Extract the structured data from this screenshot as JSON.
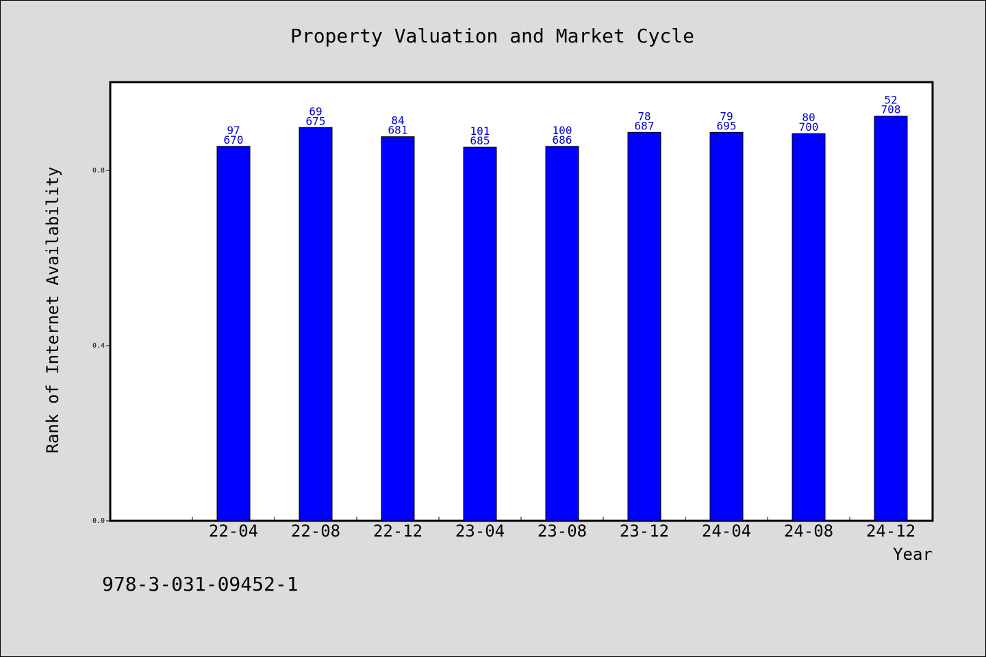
{
  "chart_data": {
    "type": "bar",
    "title": "Property Valuation and Market Cycle",
    "xlabel": "Year",
    "ylabel": "Rank of Internet Availability",
    "categories": [
      "22-04",
      "22-08",
      "22-12",
      "23-04",
      "23-08",
      "23-12",
      "24-04",
      "24-08",
      "24-12"
    ],
    "values": [
      0.855,
      0.898,
      0.877,
      0.853,
      0.855,
      0.887,
      0.887,
      0.884,
      0.924
    ],
    "bar_labels": [
      [
        "97",
        "670"
      ],
      [
        "69",
        "675"
      ],
      [
        "84",
        "681"
      ],
      [
        "101",
        "685"
      ],
      [
        "100",
        "686"
      ],
      [
        "78",
        "687"
      ],
      [
        "79",
        "695"
      ],
      [
        "80",
        "700"
      ],
      [
        "52",
        "708"
      ]
    ],
    "yticks": [
      "0.0",
      "0.4",
      "0.8"
    ],
    "ylim": [
      0,
      1.0
    ],
    "grid": false,
    "bar_color": "#0000ff",
    "label_color": "#0000cc"
  },
  "footer_code": "978-3-031-09452-1"
}
